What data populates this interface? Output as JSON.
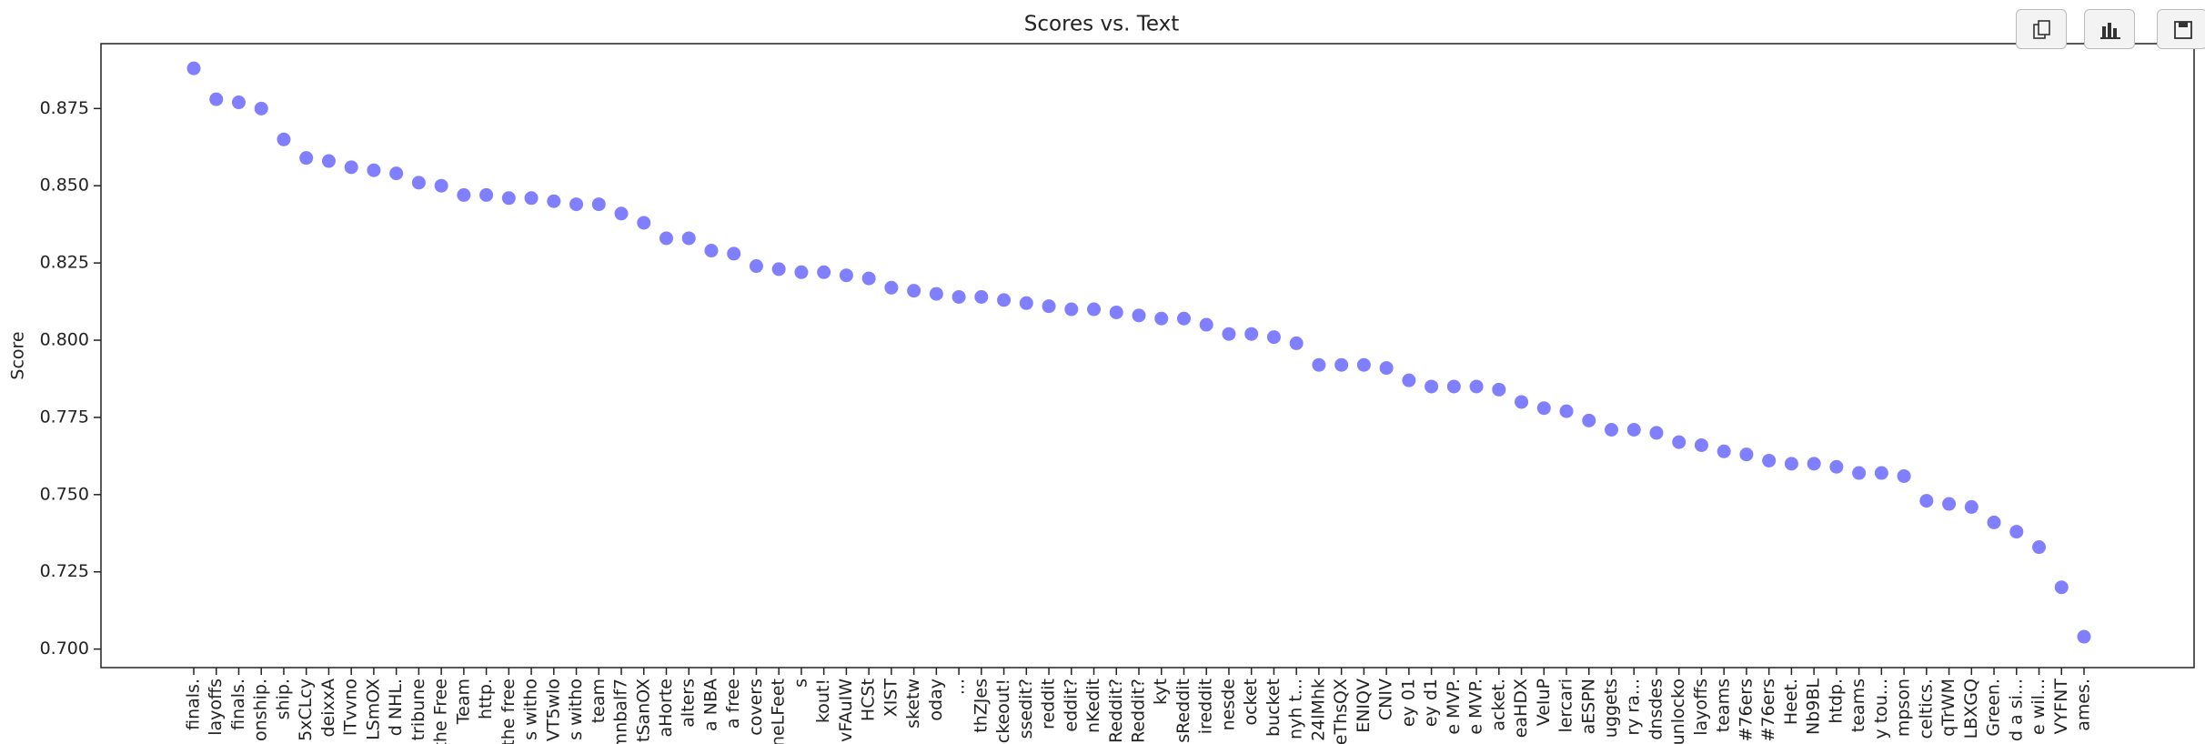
{
  "chart_data": {
    "type": "scatter",
    "title": "Scores vs. Text",
    "y_label": "Score",
    "color": "#0000ff",
    "categories": [
      "finals.",
      "layoffs",
      "finals.",
      "onship.",
      "ship.",
      "5xCLcy",
      "deixxA",
      "lTvvno",
      "LSmOX",
      "d NHL.",
      "tribune",
      "the Free",
      "Team",
      "http.",
      "the free",
      "s witho",
      "VT5wlo",
      "s witho",
      "team",
      "mnbalf7",
      "tSanOX",
      "aHorte",
      "alters",
      "a NBA",
      "a free",
      "covers",
      "neLFeet",
      "s",
      "kout!",
      "vFAuIW",
      "HCSt",
      "XIST",
      "sketw",
      "oday",
      "...",
      "thZJes",
      "ckeout!",
      "ssedit?",
      "reddit",
      "eddit?",
      "nKedit",
      "Reddit?",
      "Reddit?",
      "kyt",
      "sReddit",
      "ireddit",
      "nesde",
      "ocket",
      "bucket",
      "nyh t...",
      "24lMhk",
      "eThsQX",
      "ENIQV",
      "CNIV",
      "ey 01",
      "ey d1",
      "e MVP.",
      "e MVP.",
      "acket.",
      "eaHDX",
      "VeIuP",
      "lercari",
      "aESPN",
      "uggets",
      "ry ra...",
      "dnsdes",
      "unlocko",
      "layoffs",
      "teams",
      "#76ers",
      "#76ers",
      "Heet.",
      "Nb9BL",
      "htdp.",
      "teams",
      "y tou...",
      "mpson",
      "celtics.",
      "qTrWM",
      "LBXGQ",
      "Green.",
      "d a si...",
      "e wil...",
      "VYFNT",
      "ames."
    ],
    "values": [
      0.888,
      0.878,
      0.877,
      0.875,
      0.865,
      0.859,
      0.858,
      0.856,
      0.855,
      0.854,
      0.851,
      0.85,
      0.847,
      0.847,
      0.846,
      0.846,
      0.845,
      0.844,
      0.844,
      0.841,
      0.838,
      0.833,
      0.833,
      0.829,
      0.828,
      0.824,
      0.823,
      0.822,
      0.822,
      0.821,
      0.82,
      0.817,
      0.816,
      0.815,
      0.814,
      0.814,
      0.813,
      0.812,
      0.811,
      0.81,
      0.81,
      0.809,
      0.808,
      0.807,
      0.807,
      0.805,
      0.802,
      0.802,
      0.801,
      0.799,
      0.792,
      0.792,
      0.792,
      0.791,
      0.787,
      0.785,
      0.785,
      0.785,
      0.784,
      0.78,
      0.778,
      0.777,
      0.774,
      0.771,
      0.771,
      0.77,
      0.767,
      0.766,
      0.764,
      0.763,
      0.761,
      0.76,
      0.76,
      0.759,
      0.757,
      0.757,
      0.756,
      0.748,
      0.747,
      0.746,
      0.741,
      0.738,
      0.733,
      0.72,
      0.704
    ],
    "ylim": [
      0.694,
      0.896
    ],
    "yticks": [
      {
        "value": 0.7,
        "label": "0.700"
      },
      0.725,
      {
        "value": 0.75,
        "label": "0.750"
      },
      0.775,
      {
        "value": 0.8,
        "label": "0.800"
      },
      0.825,
      {
        "value": 0.85,
        "label": "0.850"
      },
      0.875
    ]
  }
}
